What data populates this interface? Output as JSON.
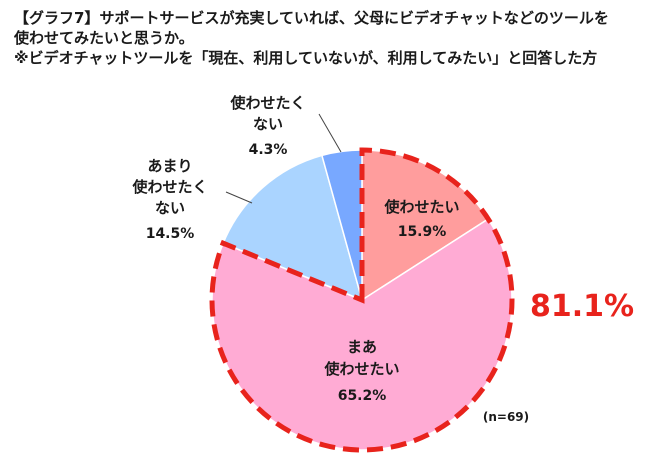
{
  "title": {
    "line1": "【グラフ7】サポートサービスが充実していれば、父母にビデオチャットなどのツールを",
    "line2": "使わせてみたいと思うか。",
    "line3": "※ビデオチャットツールを「現在、利用していないが、利用してみたい」と回答した方"
  },
  "chart_data": {
    "type": "pie",
    "slices": [
      {
        "label": "使わせたい",
        "label_lines": [
          "使わせたい"
        ],
        "value": 15.9,
        "value_label": "15.9%",
        "color": "#ff9d9d"
      },
      {
        "label": "まあ使わせたい",
        "label_lines": [
          "まあ",
          "使わせたい"
        ],
        "value": 65.2,
        "value_label": "65.2%",
        "color": "#ffabd4"
      },
      {
        "label": "あまり使わせたくない",
        "label_lines": [
          "あまり",
          "使わせたく",
          "ない"
        ],
        "value": 14.5,
        "value_label": "14.5%",
        "color": "#aad4ff"
      },
      {
        "label": "使わせたくない",
        "label_lines": [
          "使わせたく",
          "ない"
        ],
        "value": 4.3,
        "value_label": "4.3%",
        "color": "#78a8ff"
      }
    ],
    "highlight": {
      "total_label": "81.1%",
      "color": "#e8231c"
    },
    "note": "(n=69)"
  }
}
